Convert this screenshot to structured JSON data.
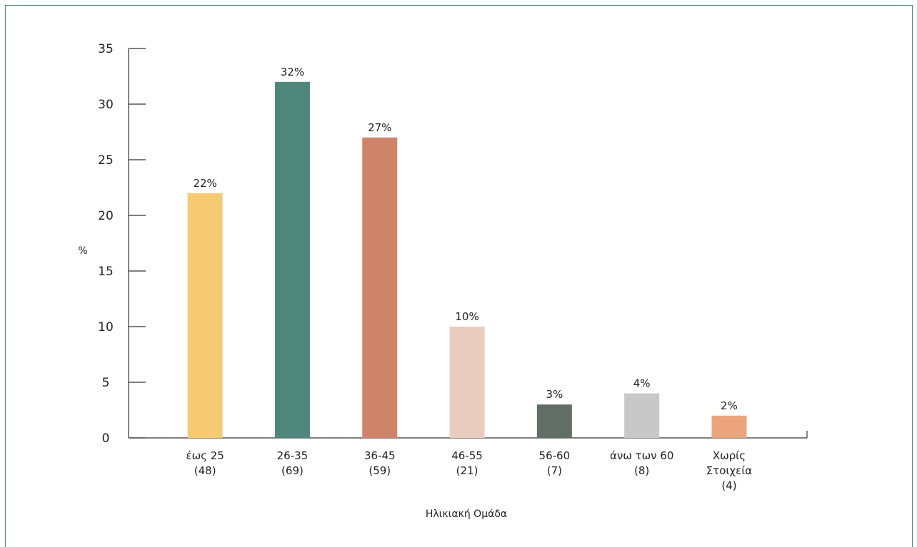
{
  "chart_data": {
    "type": "bar",
    "title": "",
    "xlabel": "Ηλικιακή Ομάδα",
    "ylabel": "%",
    "ylim": [
      0,
      35
    ],
    "yticks": [
      0,
      5,
      10,
      15,
      20,
      25,
      30,
      35
    ],
    "grid": false,
    "legend": "none",
    "categories": [
      [
        "έως 25",
        "(48)"
      ],
      [
        "26-35",
        "(69)"
      ],
      [
        "36-45",
        "(59)"
      ],
      [
        "46-55",
        "(21)"
      ],
      [
        "56-60",
        "(7)"
      ],
      [
        "άνω των 60",
        "(8)"
      ],
      [
        "Χωρίς",
        "Στοιχεία",
        "(4)"
      ]
    ],
    "values": [
      22,
      32,
      27,
      10,
      3,
      4,
      2
    ],
    "data_labels": [
      "22%",
      "32%",
      "27%",
      "10%",
      "3%",
      "4%",
      "2%"
    ],
    "colors": [
      "#f6ca70",
      "#50877d",
      "#cf846a",
      "#eacbbf",
      "#616e68",
      "#c8c8c8",
      "#eca47c"
    ],
    "frame_color": "#4f8a7f"
  }
}
